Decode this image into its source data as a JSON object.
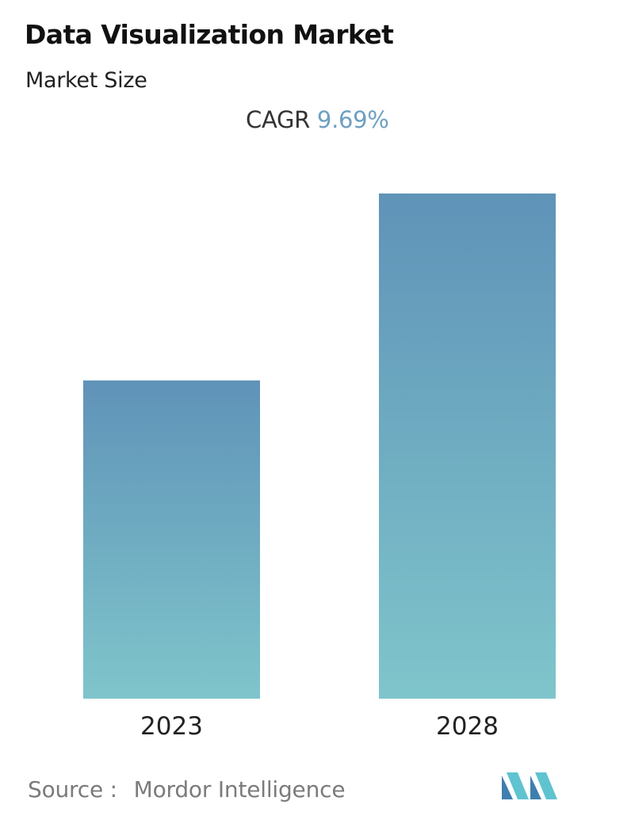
{
  "header": {
    "title": "Data Visualization Market",
    "subtitle": "Market Size",
    "cagr_label": "CAGR",
    "cagr_value": "9.69%"
  },
  "footer": {
    "source_label": "Source :",
    "source_name": "Mordor Intelligence",
    "logo_icon": "mordor-intelligence-logo-icon"
  },
  "colors": {
    "bar_top": "#5f93b8",
    "bar_bottom": "#7fc5cb",
    "cagr_value": "#6f9fc2",
    "logo_dark": "#3f7fae",
    "logo_light": "#5fc3d0"
  },
  "chart_data": {
    "type": "bar",
    "title": "Data Visualization Market",
    "subtitle": "Market Size",
    "categories": [
      "2023",
      "2028"
    ],
    "values": [
      63,
      100
    ],
    "ylim": [
      0,
      100
    ],
    "grid": false,
    "legend": "none",
    "annotations": [
      "CAGR 9.69%"
    ]
  }
}
